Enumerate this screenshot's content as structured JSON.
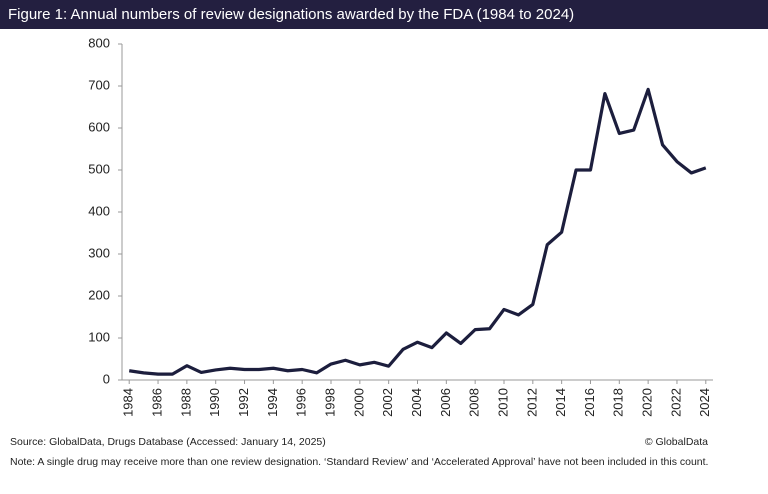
{
  "chart_data": {
    "type": "line",
    "title": "Figure 1: Annual numbers of review designations awarded by the FDA (1984 to 2024)",
    "x": [
      1984,
      1985,
      1986,
      1987,
      1988,
      1989,
      1990,
      1991,
      1992,
      1993,
      1994,
      1995,
      1996,
      1997,
      1998,
      1999,
      2000,
      2001,
      2002,
      2003,
      2004,
      2005,
      2006,
      2007,
      2008,
      2009,
      2010,
      2011,
      2012,
      2013,
      2014,
      2015,
      2016,
      2017,
      2018,
      2019,
      2020,
      2021,
      2022,
      2023,
      2024
    ],
    "values": [
      22,
      17,
      14,
      14,
      34,
      18,
      24,
      28,
      25,
      25,
      28,
      22,
      25,
      17,
      38,
      47,
      36,
      42,
      33,
      73,
      90,
      77,
      112,
      87,
      120,
      122,
      168,
      155,
      180,
      322,
      352,
      500,
      500,
      682,
      587,
      595,
      692,
      560,
      520,
      493,
      505
    ],
    "color": "#1c1e3d",
    "xlim": [
      1983.5,
      2024.5
    ],
    "xticks": [
      1984,
      1986,
      1988,
      1990,
      1992,
      1994,
      1996,
      1998,
      2000,
      2002,
      2004,
      2006,
      2008,
      2010,
      2012,
      2014,
      2016,
      2018,
      2020,
      2022,
      2024
    ],
    "ylim": [
      0,
      800
    ],
    "yticks": [
      0,
      100,
      200,
      300,
      400,
      500,
      600,
      700,
      800
    ],
    "source": "Source: GlobalData, Drugs Database (Accessed: January 14, 2025)",
    "copyright": "© GlobalData",
    "note": "Note: A single drug may receive more than one review designation. ‘Standard Review’ and ‘Accelerated Approval’ have not been included in this count."
  }
}
